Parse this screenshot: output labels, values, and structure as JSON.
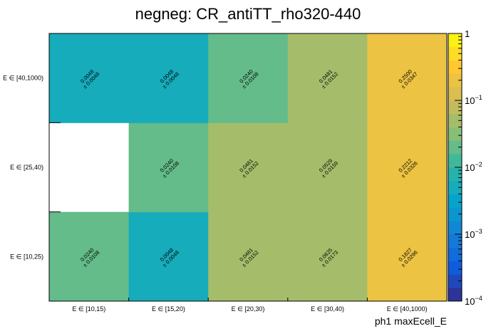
{
  "chart_data": {
    "type": "heatmap",
    "title": "negneg: CR_antiTT_rho320-440",
    "xlabel": "ph1 maxEcell_E",
    "ylabel": "",
    "x_categories": [
      "E ∈ [10,15)",
      "E ∈ [15,20)",
      "E ∈ [20,30)",
      "E ∈ [30,40)",
      "E ∈ [40,1000)"
    ],
    "y_categories": [
      "E ∈ [10,25)",
      "E ∈ [25,40)",
      "E ∈ [40,1000)"
    ],
    "cells": [
      {
        "x": 0,
        "y": 0,
        "value": 0.024,
        "value_text": "0.0240",
        "error_text": "± 0.0108"
      },
      {
        "x": 1,
        "y": 0,
        "value": 0.0048,
        "value_text": "0.0048",
        "error_text": "± 0.0048"
      },
      {
        "x": 2,
        "y": 0,
        "value": 0.0481,
        "value_text": "0.0481",
        "error_text": "± 0.0152"
      },
      {
        "x": 3,
        "y": 0,
        "value": 0.0625,
        "value_text": "0.0625",
        "error_text": "± 0.0173"
      },
      {
        "x": 4,
        "y": 0,
        "value": 0.1827,
        "value_text": "0.1827",
        "error_text": "± 0.0296"
      },
      {
        "x": 1,
        "y": 1,
        "value": 0.024,
        "value_text": "0.0240",
        "error_text": "± 0.0108"
      },
      {
        "x": 2,
        "y": 1,
        "value": 0.0481,
        "value_text": "0.0481",
        "error_text": "± 0.0152"
      },
      {
        "x": 3,
        "y": 1,
        "value": 0.0529,
        "value_text": "0.0529",
        "error_text": "± 0.0159"
      },
      {
        "x": 4,
        "y": 1,
        "value": 0.2212,
        "value_text": "0.2212",
        "error_text": "± 0.0326"
      },
      {
        "x": 0,
        "y": 2,
        "value": 0.0048,
        "value_text": "0.0048",
        "error_text": "± 0.0048"
      },
      {
        "x": 1,
        "y": 2,
        "value": 0.0048,
        "value_text": "0.0048",
        "error_text": "± 0.0048"
      },
      {
        "x": 2,
        "y": 2,
        "value": 0.024,
        "value_text": "0.0240",
        "error_text": "± 0.0108"
      },
      {
        "x": 3,
        "y": 2,
        "value": 0.0481,
        "value_text": "0.0481",
        "error_text": "± 0.0152"
      },
      {
        "x": 4,
        "y": 2,
        "value": 0.25,
        "value_text": "0.2500",
        "error_text": "± 0.0347"
      }
    ],
    "zlim": [
      0.0001,
      1
    ],
    "z_scale": "log",
    "colorbar": {
      "ticks": [
        {
          "value": 1,
          "base": "1",
          "exp": ""
        },
        {
          "value": 0.1,
          "base": "10",
          "exp": "−1"
        },
        {
          "value": 0.01,
          "base": "10",
          "exp": "−2"
        },
        {
          "value": 0.001,
          "base": "10",
          "exp": "−3"
        },
        {
          "value": 0.0001,
          "base": "10",
          "exp": "−4"
        }
      ]
    },
    "palette": [
      "#352a87",
      "#0f5cdd",
      "#1481d6",
      "#06a4ca",
      "#2eb7a4",
      "#87bf77",
      "#d1bb59",
      "#fec832",
      "#f9fb0e"
    ],
    "grid": false,
    "legend": "colorbar-right"
  }
}
